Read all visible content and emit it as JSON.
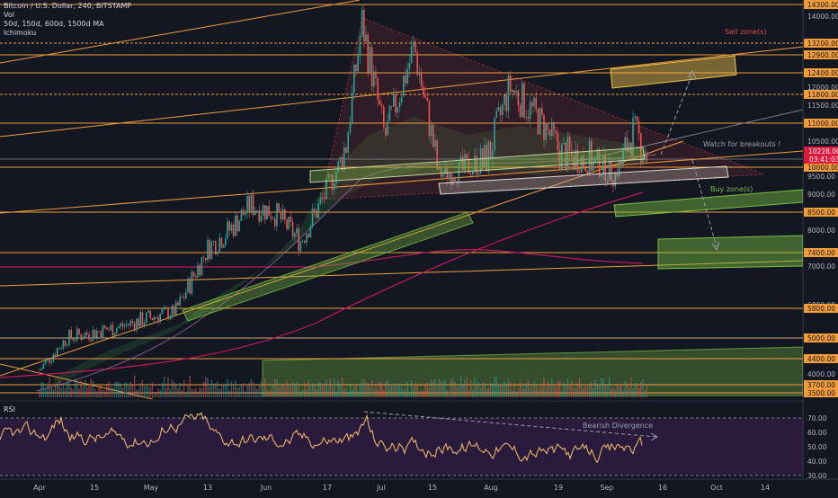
{
  "header": {
    "symbol_line": "Bitcoin / U.S. Dollar, 240, BITSTAMP",
    "indicators": [
      "Vol",
      "50d, 150d, 600d, 1500d MA",
      "Ichimoku"
    ]
  },
  "rsi": {
    "label": "RSI",
    "ticks": [
      "70.00",
      "60.00",
      "50.00",
      "40.00",
      "30.00"
    ]
  },
  "annotations": {
    "sell_zone": "Sell zone(s)",
    "buy_zone": "Buy zone(s)",
    "watch": "Watch for breakouts !",
    "bearish": "Bearish Divergence"
  },
  "price_tag": {
    "price": "10228.00",
    "countdown": "03:41:03",
    "color": "#e0163a"
  },
  "colors": {
    "bg": "#131722",
    "orange": "#f39c3a",
    "up": "#26a69a",
    "down": "#ef5350",
    "ma_magenta": "#c2185b",
    "rsi_line": "#f7c16b",
    "sell": "#c0393f",
    "buy": "#7bc043"
  },
  "chart_data": {
    "type": "line",
    "title": "Bitcoin / U.S. Dollar, 240, BITSTAMP",
    "price_axis": [
      "14300.00",
      "14000.00",
      "13200.00",
      "12900.00",
      "12400.00",
      "12000.00",
      "11800.00",
      "11500.00",
      "11000.00",
      "10500.00",
      "10228.00",
      "10000.00",
      "9500.00",
      "9000.00",
      "8500.00",
      "8000.00",
      "7400.00",
      "7000.00",
      "6000.00",
      "5800.00",
      "5000.00",
      "4400.00",
      "4000.00",
      "3700.00",
      "3500.00"
    ],
    "highlighted_levels": [
      14300,
      13200,
      12900,
      12400,
      11800,
      11000,
      10000,
      8500,
      7400,
      5800,
      5000,
      4400,
      3700,
      3500
    ],
    "x_axis_labels": [
      "Apr",
      "15",
      "May",
      "13",
      "Jun",
      "17",
      "Jul",
      "15",
      "Aug",
      "19",
      "Sep",
      "16",
      "Oct",
      "14"
    ],
    "approx_price_path": [
      {
        "x": "Apr 1",
        "y": 4100
      },
      {
        "x": "Apr 8",
        "y": 5000
      },
      {
        "x": "Apr 22",
        "y": 5300
      },
      {
        "x": "May 6",
        "y": 5750
      },
      {
        "x": "May 13",
        "y": 7500
      },
      {
        "x": "May 20",
        "y": 8000
      },
      {
        "x": "May 27",
        "y": 8700
      },
      {
        "x": "Jun 3",
        "y": 8500
      },
      {
        "x": "Jun 10",
        "y": 7700
      },
      {
        "x": "Jun 17",
        "y": 9100
      },
      {
        "x": "Jun 22",
        "y": 10500
      },
      {
        "x": "Jun 26",
        "y": 13800
      },
      {
        "x": "Jul 2",
        "y": 10600
      },
      {
        "x": "Jul 10",
        "y": 13100
      },
      {
        "x": "Jul 17",
        "y": 9600
      },
      {
        "x": "Jul 24",
        "y": 9800
      },
      {
        "x": "Jul 31",
        "y": 10100
      },
      {
        "x": "Aug 6",
        "y": 12000
      },
      {
        "x": "Aug 13",
        "y": 11200
      },
      {
        "x": "Aug 20",
        "y": 10200
      },
      {
        "x": "Aug 27",
        "y": 10100
      },
      {
        "x": "Sep 3",
        "y": 9600
      },
      {
        "x": "Sep 8",
        "y": 10800
      },
      {
        "x": "Sep 12",
        "y": 10228
      }
    ],
    "rsi_range": [
      25,
      80
    ],
    "rsi_levels": [
      70,
      30
    ],
    "ylim": [
      3400,
      14500
    ],
    "grid": false
  }
}
